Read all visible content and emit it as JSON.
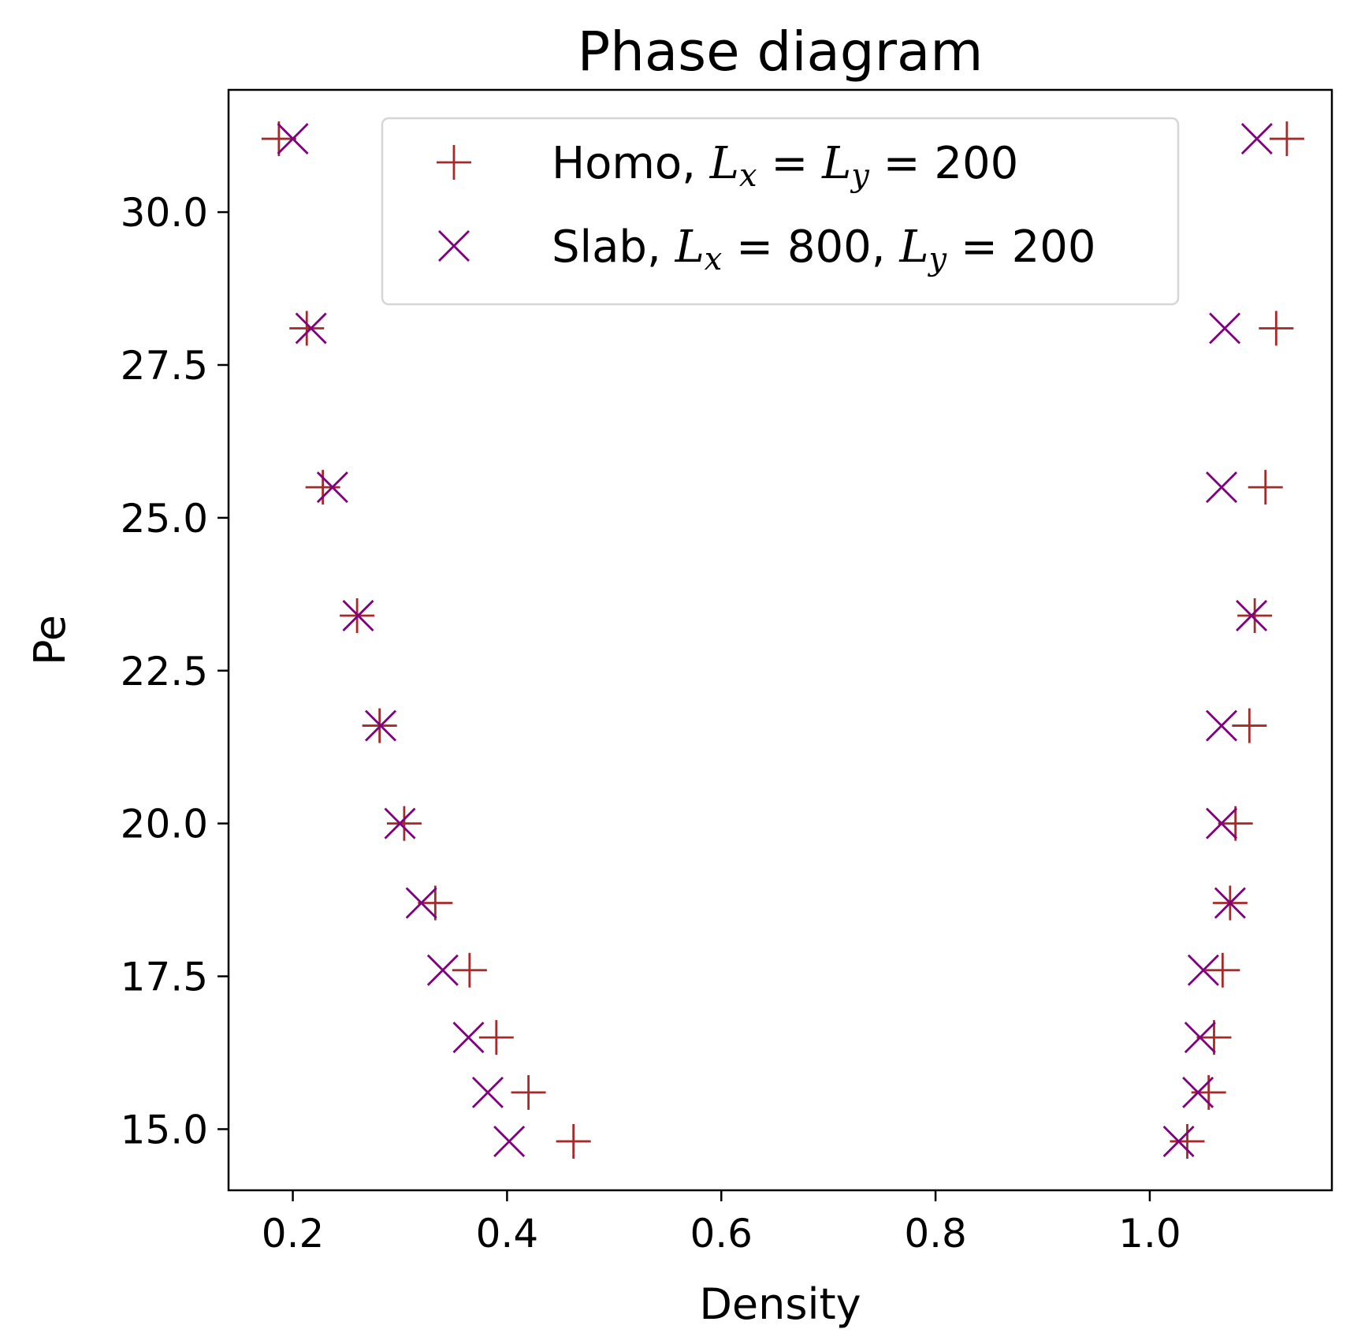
{
  "chart_data": {
    "type": "scatter",
    "title": "Phase diagram",
    "xlabel": "Density",
    "ylabel": "Pe",
    "xlim": [
      0.14,
      1.17
    ],
    "ylim": [
      14.0,
      32.0
    ],
    "xticks": [
      0.2,
      0.4,
      0.6,
      0.8,
      1.0
    ],
    "xtick_labels": [
      "0.2",
      "0.4",
      "0.6",
      "0.8",
      "1.0"
    ],
    "yticks": [
      15.0,
      17.5,
      20.0,
      22.5,
      25.0,
      27.5,
      30.0
    ],
    "ytick_labels": [
      "15.0",
      "17.5",
      "20.0",
      "22.5",
      "25.0",
      "27.5",
      "30.0"
    ],
    "grid": false,
    "legend_position": "top-center",
    "series": [
      {
        "name": "Homo, Lx = Ly = 200",
        "legend": {
          "prefix": "Homo, ",
          "l1": "L",
          "s1": "x",
          "mid": " = ",
          "l2": "L",
          "s2": "y",
          "suffix": " = 200"
        },
        "marker": "plus",
        "color": "#a52a2a",
        "points": [
          [
            0.187,
            31.2
          ],
          [
            1.128,
            31.2
          ],
          [
            0.213,
            28.1
          ],
          [
            1.118,
            28.1
          ],
          [
            0.228,
            25.5
          ],
          [
            1.108,
            25.5
          ],
          [
            0.26,
            23.4
          ],
          [
            1.098,
            23.4
          ],
          [
            0.281,
            21.6
          ],
          [
            1.093,
            21.6
          ],
          [
            0.304,
            20.0
          ],
          [
            1.08,
            20.0
          ],
          [
            0.333,
            18.7
          ],
          [
            1.075,
            18.7
          ],
          [
            0.365,
            17.6
          ],
          [
            1.068,
            17.6
          ],
          [
            0.39,
            16.5
          ],
          [
            1.06,
            16.5
          ],
          [
            0.42,
            15.6
          ],
          [
            1.055,
            15.6
          ],
          [
            0.462,
            14.8
          ],
          [
            1.035,
            14.8
          ]
        ]
      },
      {
        "name": "Slab, Lx = 800, Ly = 200",
        "legend": {
          "prefix": "Slab, ",
          "l1": "L",
          "s1": "x",
          "mid": " = 800, ",
          "l2": "L",
          "s2": "y",
          "suffix": " = 200"
        },
        "marker": "x",
        "color": "#800080",
        "points": [
          [
            0.2,
            31.2
          ],
          [
            1.1,
            31.2
          ],
          [
            0.217,
            28.1
          ],
          [
            1.07,
            28.1
          ],
          [
            0.237,
            25.5
          ],
          [
            1.067,
            25.5
          ],
          [
            0.261,
            23.4
          ],
          [
            1.095,
            23.4
          ],
          [
            0.282,
            21.6
          ],
          [
            1.067,
            21.6
          ],
          [
            0.3,
            20.0
          ],
          [
            1.067,
            20.0
          ],
          [
            0.32,
            18.7
          ],
          [
            1.075,
            18.7
          ],
          [
            0.34,
            17.6
          ],
          [
            1.05,
            17.6
          ],
          [
            0.364,
            16.5
          ],
          [
            1.047,
            16.5
          ],
          [
            0.382,
            15.6
          ],
          [
            1.045,
            15.6
          ],
          [
            0.402,
            14.8
          ],
          [
            1.027,
            14.8
          ]
        ]
      }
    ]
  }
}
